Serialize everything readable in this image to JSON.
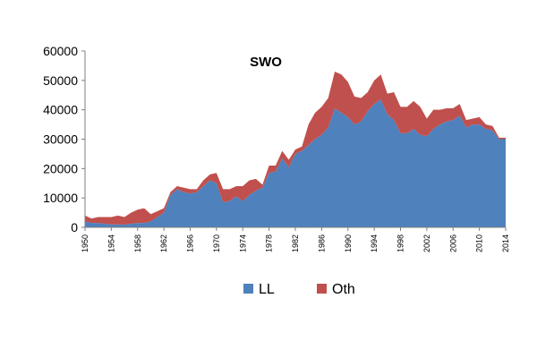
{
  "chart_data": {
    "type": "area",
    "stacked": true,
    "title": "SWO",
    "xlabel": "",
    "ylabel": "",
    "ylim": [
      0,
      60000
    ],
    "yticks": [
      0,
      10000,
      20000,
      30000,
      40000,
      50000,
      60000
    ],
    "ytick_labels": [
      "0",
      "10000",
      "20000",
      "30000",
      "40000",
      "50000",
      "60000"
    ],
    "xticks": [
      1950,
      1954,
      1958,
      1962,
      1966,
      1970,
      1974,
      1978,
      1982,
      1986,
      1990,
      1994,
      1998,
      2002,
      2006,
      2010,
      2014
    ],
    "xtick_labels": [
      "1950",
      "1954",
      "1958",
      "1962",
      "1966",
      "1970",
      "1974",
      "1978",
      "1982",
      "1986",
      "1990",
      "1994",
      "1998",
      "2002",
      "2006",
      "2010",
      "2014"
    ],
    "grid": false,
    "legend_position": "bottom",
    "x": [
      1950,
      1951,
      1952,
      1953,
      1954,
      1955,
      1956,
      1957,
      1958,
      1959,
      1960,
      1961,
      1962,
      1963,
      1964,
      1965,
      1966,
      1967,
      1968,
      1969,
      1970,
      1971,
      1972,
      1973,
      1974,
      1975,
      1976,
      1977,
      1978,
      1979,
      1980,
      1981,
      1982,
      1983,
      1984,
      1985,
      1986,
      1987,
      1988,
      1989,
      1990,
      1991,
      1992,
      1993,
      1994,
      1995,
      1996,
      1997,
      1998,
      1999,
      2000,
      2001,
      2002,
      2003,
      2004,
      2005,
      2006,
      2007,
      2008,
      2009,
      2010,
      2011,
      2012,
      2013,
      2014
    ],
    "series": [
      {
        "name": "LL",
        "color": "#4f81bd",
        "values": [
          2000,
          1500,
          1500,
          1200,
          1000,
          1000,
          900,
          1200,
          1500,
          1500,
          2000,
          3500,
          5000,
          11000,
          13000,
          12000,
          11500,
          12000,
          14000,
          16000,
          15000,
          8500,
          9000,
          10500,
          9000,
          11000,
          12500,
          13500,
          18500,
          19000,
          23500,
          20500,
          25000,
          26000,
          28000,
          30000,
          31500,
          34000,
          40500,
          39000,
          37500,
          35000,
          36000,
          39500,
          42000,
          43500,
          38500,
          36500,
          32000,
          32000,
          33500,
          31500,
          31000,
          33500,
          35000,
          36000,
          36500,
          38000,
          34000,
          35000,
          35000,
          33500,
          33000,
          30000,
          30000
        ]
      },
      {
        "name": "Oth",
        "color": "#c0504d",
        "values": [
          2000,
          1500,
          2000,
          2300,
          2500,
          3000,
          2600,
          3800,
          4500,
          5000,
          2500,
          2000,
          1500,
          1000,
          1000,
          1500,
          1500,
          1000,
          2000,
          2000,
          3500,
          4500,
          4000,
          3500,
          5000,
          5000,
          4000,
          1000,
          2500,
          2000,
          2500,
          2500,
          1500,
          1500,
          7000,
          9000,
          9500,
          10000,
          12500,
          13000,
          12000,
          9500,
          8000,
          6500,
          8000,
          8500,
          7000,
          9500,
          9000,
          9000,
          9500,
          9500,
          6000,
          6500,
          5000,
          4500,
          4000,
          4000,
          2500,
          2000,
          2500,
          1500,
          1500,
          500,
          500
        ]
      }
    ]
  }
}
